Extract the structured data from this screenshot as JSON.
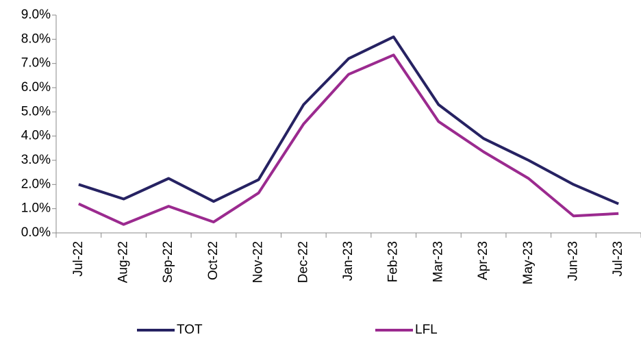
{
  "chart_data": {
    "type": "line",
    "categories": [
      "Jul-22",
      "Aug-22",
      "Sep-22",
      "Oct-22",
      "Nov-22",
      "Dec-22",
      "Jan-23",
      "Feb-23",
      "Mar-23",
      "Apr-23",
      "May-23",
      "Jun-23",
      "Jul-23"
    ],
    "series": [
      {
        "name": "TOT",
        "color": "#262262",
        "values": [
          2.0,
          1.4,
          2.25,
          1.3,
          2.2,
          5.3,
          7.2,
          8.1,
          5.3,
          3.9,
          3.0,
          2.0,
          1.2
        ]
      },
      {
        "name": "LFL",
        "color": "#9b2a8f",
        "values": [
          1.2,
          0.35,
          1.1,
          0.45,
          1.65,
          4.5,
          6.55,
          7.35,
          4.6,
          3.35,
          2.25,
          0.7,
          0.8
        ]
      }
    ],
    "ylim": [
      0,
      9
    ],
    "yticks": [
      {
        "value": 0,
        "label": "0.0%"
      },
      {
        "value": 1,
        "label": "1.0%"
      },
      {
        "value": 2,
        "label": "2.0%"
      },
      {
        "value": 3,
        "label": "3.0%"
      },
      {
        "value": 4,
        "label": "4.0%"
      },
      {
        "value": 5,
        "label": "5.0%"
      },
      {
        "value": 6,
        "label": "6.0%"
      },
      {
        "value": 7,
        "label": "7.0%"
      },
      {
        "value": 8,
        "label": "8.0%"
      },
      {
        "value": 9,
        "label": "9.0%"
      }
    ],
    "grid": false,
    "legend": "bottom"
  }
}
